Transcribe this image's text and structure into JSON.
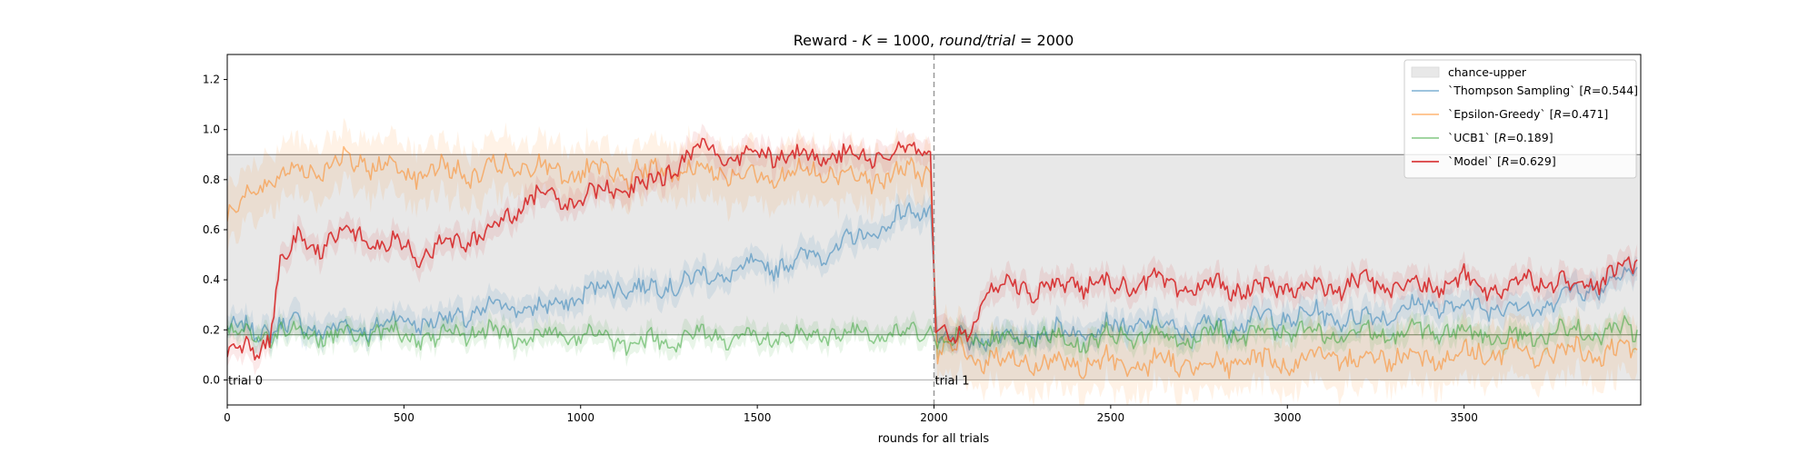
{
  "chart_data": {
    "type": "line",
    "title": "Reward - K = 1000, round/trial = 2000",
    "title_parts": {
      "prefix": "Reward - ",
      "k_symbol": "K",
      "k_eq": " = 1000, ",
      "round_symbol": "round/trial",
      "round_eq": " = 2000"
    },
    "xlabel": "rounds for all trials",
    "ylabel": "",
    "xlim": [
      0,
      4000
    ],
    "ylim": [
      -0.1,
      1.3
    ],
    "xticks": [
      0,
      500,
      1000,
      1500,
      2000,
      2500,
      3000,
      3500
    ],
    "xtick_labels": [
      "0",
      "500",
      "1000",
      "1500",
      "2000",
      "2500",
      "3000",
      "3500"
    ],
    "yticks": [
      0.0,
      0.2,
      0.4,
      0.6,
      0.8,
      1.0,
      1.2
    ],
    "ytick_labels": [
      "0.0",
      "0.2",
      "0.4",
      "0.6",
      "0.8",
      "1.0",
      "1.2"
    ],
    "grid": false,
    "legend_position": "top-right",
    "chance_band": {
      "label": "chance-upper",
      "upper": [
        0.9,
        0.9
      ],
      "lower": [
        0.18,
        0.0
      ],
      "color": "#e8e8e8"
    },
    "reference_lines": [
      0.9,
      0.18,
      0.0
    ],
    "trial_divider_x": 2000,
    "annotations": [
      {
        "text": "trial 0",
        "x": 0,
        "y": 0.0
      },
      {
        "text": "trial 1",
        "x": 2000,
        "y": 0.0
      }
    ],
    "series": [
      {
        "name": "`Thompson Sampling` [R=0.544]",
        "legend_prefix": "`Thompson Sampling` [",
        "legend_sym": "R",
        "legend_suffix": "=0.544]",
        "color": "#1f77b4",
        "alpha": 0.5,
        "x": [
          0,
          100,
          200,
          300,
          400,
          500,
          600,
          700,
          800,
          900,
          1000,
          1100,
          1200,
          1300,
          1400,
          1500,
          1600,
          1700,
          1800,
          1900,
          1990,
          2010,
          2100,
          2200,
          2300,
          2400,
          2500,
          2600,
          2700,
          2800,
          2900,
          3000,
          3100,
          3200,
          3300,
          3400,
          3500,
          3600,
          3700,
          3800,
          3900,
          3990
        ],
        "y": [
          0.2,
          0.2,
          0.22,
          0.2,
          0.21,
          0.24,
          0.23,
          0.27,
          0.3,
          0.28,
          0.34,
          0.38,
          0.36,
          0.4,
          0.42,
          0.45,
          0.47,
          0.52,
          0.57,
          0.65,
          0.68,
          0.15,
          0.16,
          0.17,
          0.18,
          0.2,
          0.21,
          0.23,
          0.2,
          0.22,
          0.24,
          0.25,
          0.26,
          0.24,
          0.27,
          0.3,
          0.29,
          0.3,
          0.28,
          0.35,
          0.38,
          0.45
        ],
        "spread": 0.05
      },
      {
        "name": "`Epsilon-Greedy` [R=0.471]",
        "legend_prefix": "`Epsilon-Greedy` [",
        "legend_sym": "R",
        "legend_suffix": "=0.471]",
        "color": "#ff7f0e",
        "alpha": 0.5,
        "x": [
          0,
          50,
          100,
          200,
          300,
          400,
          500,
          600,
          700,
          800,
          900,
          1000,
          1100,
          1200,
          1300,
          1400,
          1500,
          1600,
          1700,
          1800,
          1900,
          1990,
          2010,
          2100,
          2200,
          2300,
          2400,
          2500,
          2600,
          2700,
          2800,
          2900,
          3000,
          3100,
          3200,
          3300,
          3400,
          3500,
          3600,
          3700,
          3800,
          3900,
          3990
        ],
        "y": [
          0.65,
          0.72,
          0.78,
          0.84,
          0.86,
          0.87,
          0.83,
          0.84,
          0.82,
          0.85,
          0.84,
          0.83,
          0.82,
          0.83,
          0.84,
          0.83,
          0.82,
          0.82,
          0.83,
          0.81,
          0.82,
          0.84,
          0.12,
          0.1,
          0.08,
          0.07,
          0.06,
          0.07,
          0.06,
          0.07,
          0.06,
          0.08,
          0.07,
          0.09,
          0.08,
          0.1,
          0.09,
          0.1,
          0.11,
          0.1,
          0.12,
          0.1,
          0.12
        ],
        "spread": 0.11
      },
      {
        "name": "`UCB1` [R=0.189]",
        "legend_prefix": "`UCB1` [",
        "legend_sym": "R",
        "legend_suffix": "=0.189]",
        "color": "#2ca02c",
        "alpha": 0.5,
        "x": [
          0,
          100,
          200,
          300,
          400,
          500,
          600,
          700,
          800,
          900,
          1000,
          1100,
          1200,
          1300,
          1400,
          1500,
          1600,
          1700,
          1800,
          1900,
          1990,
          2010,
          2100,
          2200,
          2300,
          2400,
          2500,
          2600,
          2700,
          2800,
          2900,
          3000,
          3100,
          3200,
          3300,
          3400,
          3500,
          3600,
          3700,
          3800,
          3900,
          3990
        ],
        "y": [
          0.19,
          0.18,
          0.2,
          0.17,
          0.19,
          0.18,
          0.16,
          0.2,
          0.18,
          0.17,
          0.19,
          0.16,
          0.15,
          0.17,
          0.18,
          0.16,
          0.17,
          0.18,
          0.19,
          0.17,
          0.2,
          0.15,
          0.17,
          0.16,
          0.18,
          0.15,
          0.17,
          0.18,
          0.16,
          0.19,
          0.18,
          0.2,
          0.17,
          0.19,
          0.18,
          0.2,
          0.19,
          0.18,
          0.17,
          0.2,
          0.19,
          0.2
        ],
        "spread": 0.04
      },
      {
        "name": "`Model` [R=0.629]",
        "legend_prefix": "`Model` [",
        "legend_sym": "R",
        "legend_suffix": "=0.629]",
        "color": "#d62728",
        "alpha": 0.9,
        "x": [
          0,
          30,
          60,
          90,
          120,
          150,
          200,
          250,
          300,
          350,
          400,
          450,
          500,
          550,
          600,
          650,
          700,
          750,
          800,
          850,
          900,
          950,
          1000,
          1050,
          1100,
          1150,
          1200,
          1250,
          1300,
          1350,
          1400,
          1450,
          1500,
          1550,
          1600,
          1650,
          1700,
          1750,
          1800,
          1850,
          1900,
          1950,
          1990,
          2005,
          2030,
          2060,
          2100,
          2150,
          2200,
          2300,
          2400,
          2500,
          2600,
          2700,
          2800,
          2900,
          3000,
          3100,
          3200,
          3300,
          3400,
          3500,
          3600,
          3700,
          3800,
          3900,
          3990
        ],
        "y": [
          0.12,
          0.1,
          0.13,
          0.12,
          0.18,
          0.45,
          0.56,
          0.54,
          0.55,
          0.6,
          0.56,
          0.52,
          0.55,
          0.5,
          0.53,
          0.55,
          0.57,
          0.6,
          0.66,
          0.73,
          0.74,
          0.72,
          0.73,
          0.75,
          0.76,
          0.77,
          0.78,
          0.83,
          0.9,
          0.93,
          0.91,
          0.89,
          0.91,
          0.9,
          0.89,
          0.88,
          0.92,
          0.9,
          0.89,
          0.91,
          0.9,
          0.92,
          0.9,
          0.2,
          0.18,
          0.15,
          0.2,
          0.35,
          0.38,
          0.36,
          0.39,
          0.37,
          0.4,
          0.36,
          0.38,
          0.35,
          0.38,
          0.36,
          0.39,
          0.38,
          0.37,
          0.4,
          0.36,
          0.41,
          0.38,
          0.4,
          0.48
        ],
        "spread": 0.05
      }
    ]
  }
}
